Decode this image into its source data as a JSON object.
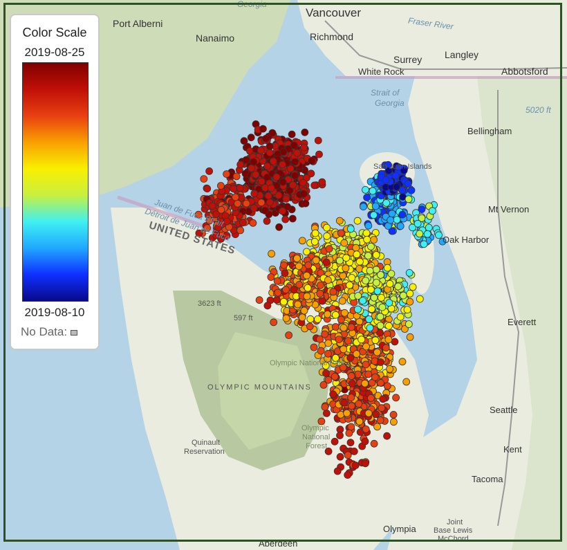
{
  "legend": {
    "title": "Color Scale",
    "max_label": "2019-08-25",
    "min_label": "2019-08-10",
    "no_data_label": "No Data:",
    "gradient": [
      "#080a8a",
      "#1030ff",
      "#20a8ff",
      "#40f0f0",
      "#c8f040",
      "#f8f000",
      "#f8a000",
      "#e84010",
      "#c01008",
      "#800000"
    ]
  },
  "map_labels": {
    "vancouver": "Vancouver",
    "richmond": "Richmond",
    "surrey": "Surrey",
    "langley": "Langley",
    "white_rock": "White Rock",
    "abbotsford": "Abbotsford",
    "port_alberni": "Port Alberni",
    "nanaimo": "Nanaimo",
    "strait_georgia_1": "Strait of",
    "strait_georgia_2": "Georgia",
    "fraser_river": "Fraser River",
    "bellingham": "Bellingham",
    "elev_5020": "5020 ft",
    "san_juan": "San Juan Islands",
    "mt_vernon": "Mt Vernon",
    "oak_harbor": "Oak Harbor",
    "juan_de_fuca_1": "Juan de Fuca Strait",
    "juan_de_fuca_2": "Détroit de Juan de Fuca",
    "united_states": "UNITED STATES",
    "elev_3623": "3623 ft",
    "elev_597": "597 ft",
    "everett": "Everett",
    "olympic_mountains": "OLYMPIC MOUNTAINS",
    "olympic_park": "Olympic National Park",
    "olympic_forest_1": "Olympic",
    "olympic_forest_2": "National",
    "olympic_forest_3": "Forest",
    "seattle": "Seattle",
    "quinault_1": "Quinault",
    "quinault_2": "Reservation",
    "kent": "Kent",
    "tacoma": "Tacoma",
    "olympia": "Olympia",
    "jblm_1": "Joint",
    "jblm_2": "Base Lewis",
    "jblm_3": "McChord",
    "aberdeen": "Aberdeen",
    "georgia_top": "Georgia"
  },
  "points": {
    "date_range": [
      "2019-08-10",
      "2019-08-25"
    ],
    "marker_stroke": "#333333"
  },
  "colors": {
    "water": "#b5d3e7",
    "land": "#e9ecdf",
    "forest": "#cfdcb8",
    "mountain": "#b8c8a0",
    "park": "#c5d6a8",
    "frame": "#2f4f26"
  }
}
